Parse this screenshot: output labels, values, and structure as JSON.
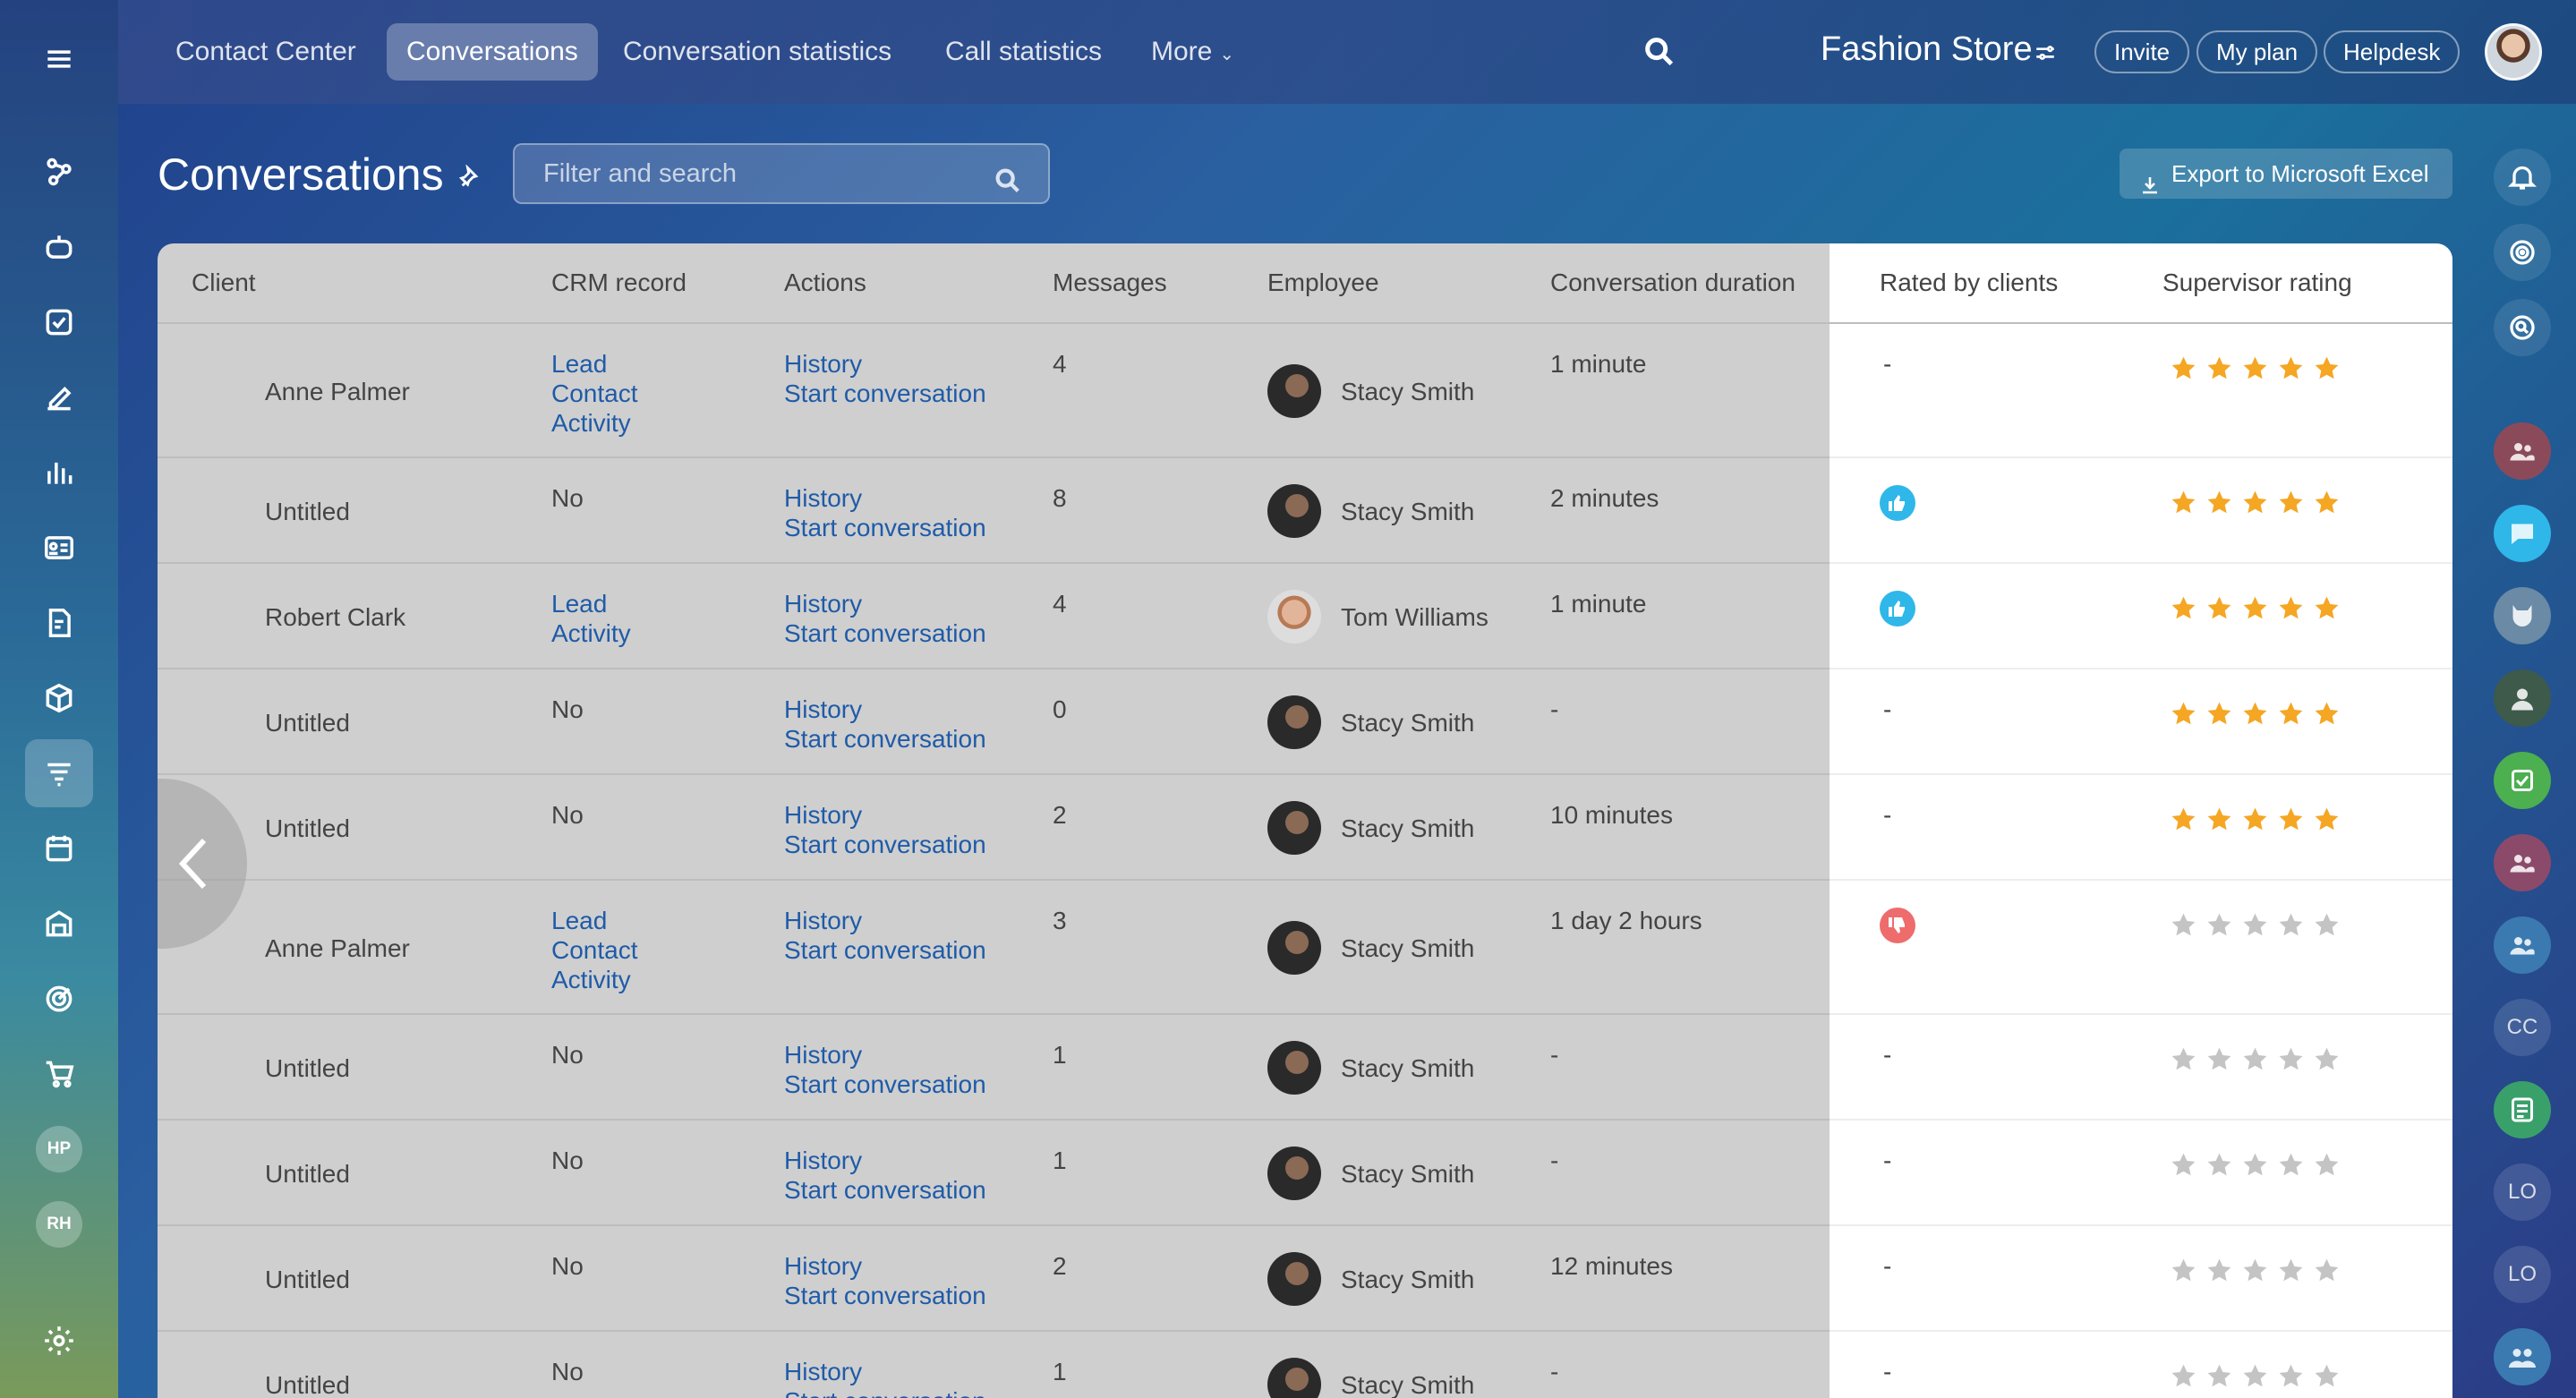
{
  "topnav": {
    "tabs": [
      {
        "label": "Contact Center"
      },
      {
        "label": "Conversations"
      },
      {
        "label": "Conversation statistics"
      },
      {
        "label": "Call statistics"
      },
      {
        "label": "More"
      }
    ],
    "portal_name": "Fashion Store",
    "invite_label": "Invite",
    "plan_label": "My plan",
    "helpdesk_label": "Helpdesk"
  },
  "leftbar": {
    "avatars": [
      "HP",
      "RH"
    ]
  },
  "page": {
    "title": "Conversations",
    "search_placeholder": "Filter and search",
    "export_label": "Export to Microsoft Excel"
  },
  "rightbar": {
    "initials": [
      "CC",
      "LO",
      "LO"
    ]
  },
  "table": {
    "headers": {
      "client": "Client",
      "crm": "CRM record",
      "actions": "Actions",
      "messages": "Messages",
      "employee": "Employee",
      "duration": "Conversation duration",
      "rated": "Rated by clients",
      "supervisor": "Supervisor rating"
    },
    "rows": [
      {
        "client": "Anne Palmer",
        "crm": [
          "Lead",
          "Contact",
          "Activity"
        ],
        "actions": [
          "History",
          "Start conversation"
        ],
        "messages": "4",
        "employee": "Stacy Smith",
        "duration": "1 minute",
        "rated": "-",
        "supervisor": 5
      },
      {
        "client": "Untitled",
        "crm": [
          "No"
        ],
        "actions": [
          "History",
          "Start conversation"
        ],
        "messages": "8",
        "employee": "Stacy Smith",
        "duration": "2 minutes",
        "rated": "like",
        "supervisor": 5
      },
      {
        "client": "Robert Clark",
        "crm": [
          "Lead",
          "Activity"
        ],
        "actions": [
          "History",
          "Start conversation"
        ],
        "messages": "4",
        "employee": "Tom Williams",
        "duration": "1 minute",
        "rated": "like",
        "supervisor": 5
      },
      {
        "client": "Untitled",
        "crm": [
          "No"
        ],
        "actions": [
          "History",
          "Start conversation"
        ],
        "messages": "0",
        "employee": "Stacy Smith",
        "duration": "-",
        "rated": "-",
        "supervisor": 5
      },
      {
        "client": "Untitled",
        "crm": [
          "No"
        ],
        "actions": [
          "History",
          "Start conversation"
        ],
        "messages": "2",
        "employee": "Stacy Smith",
        "duration": "10 minutes",
        "rated": "-",
        "supervisor": 5
      },
      {
        "client": "Anne Palmer",
        "crm": [
          "Lead",
          "Contact",
          "Activity"
        ],
        "actions": [
          "History",
          "Start conversation"
        ],
        "messages": "3",
        "employee": "Stacy Smith",
        "duration": "1 day 2 hours",
        "rated": "dislike",
        "supervisor": 0
      },
      {
        "client": "Untitled",
        "crm": [
          "No"
        ],
        "actions": [
          "History",
          "Start conversation"
        ],
        "messages": "1",
        "employee": "Stacy Smith",
        "duration": "-",
        "rated": "-",
        "supervisor": 0
      },
      {
        "client": "Untitled",
        "crm": [
          "No"
        ],
        "actions": [
          "History",
          "Start conversation"
        ],
        "messages": "1",
        "employee": "Stacy Smith",
        "duration": "-",
        "rated": "-",
        "supervisor": 0
      },
      {
        "client": "Untitled",
        "crm": [
          "No"
        ],
        "actions": [
          "History",
          "Start conversation"
        ],
        "messages": "2",
        "employee": "Stacy Smith",
        "duration": "12 minutes",
        "rated": "-",
        "supervisor": 0
      },
      {
        "client": "Untitled",
        "crm": [
          "No"
        ],
        "actions": [
          "History",
          "Start conversation"
        ],
        "messages": "1",
        "employee": "Stacy Smith",
        "duration": "-",
        "rated": "-",
        "supervisor": 0
      }
    ]
  },
  "colors": {
    "link": "#1f5ba8",
    "star_filled": "#f5a623",
    "star_empty": "#c4c4c4",
    "like": "#2fb7e9",
    "dislike": "#ee6c6c"
  }
}
